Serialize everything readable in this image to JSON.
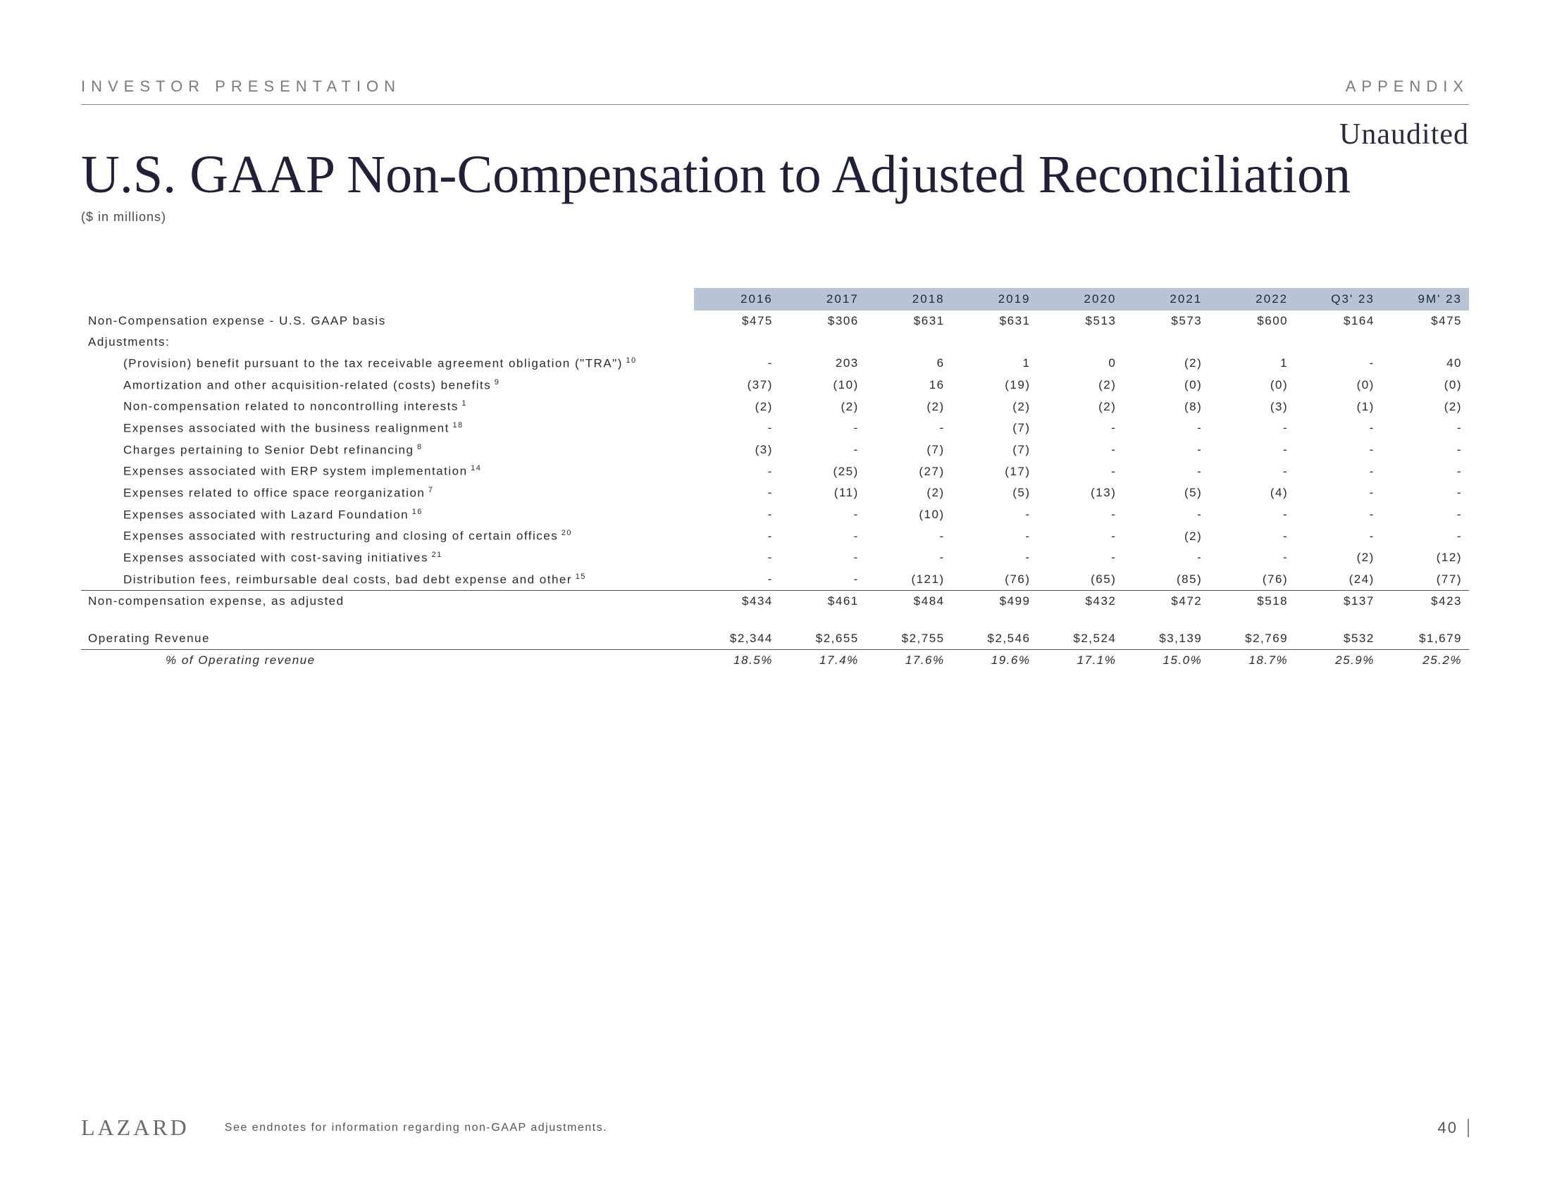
{
  "header": {
    "left": "INVESTOR PRESENTATION",
    "right": "APPENDIX"
  },
  "unaudited": "Unaudited",
  "title": "U.S. GAAP Non-Compensation to Adjusted Reconciliation",
  "subtitle": "($ in millions)",
  "columns": [
    "2016",
    "2017",
    "2018",
    "2019",
    "2020",
    "2021",
    "2022",
    "Q3' 23",
    "9M' 23"
  ],
  "rows": [
    {
      "label": "Non-Compensation expense  -  U.S. GAAP basis",
      "sup": "",
      "indent": 0,
      "vals": [
        "$475",
        "$306",
        "$631",
        "$631",
        "$513",
        "$573",
        "$600",
        "$164",
        "$475"
      ],
      "cls": ""
    },
    {
      "label": "Adjustments:",
      "sup": "",
      "indent": 0,
      "vals": [
        "",
        "",
        "",
        "",
        "",
        "",
        "",
        "",
        ""
      ],
      "cls": ""
    },
    {
      "label": "(Provision) benefit pursuant to the tax receivable agreement obligation (\"TRA\")",
      "sup": "10",
      "indent": 1,
      "vals": [
        "-",
        "203",
        "6",
        "1",
        "0",
        "(2)",
        "1",
        "-",
        "40"
      ],
      "cls": ""
    },
    {
      "label": "Amortization and other acquisition-related (costs) benefits",
      "sup": "9",
      "indent": 1,
      "vals": [
        "(37)",
        "(10)",
        "16",
        "(19)",
        "(2)",
        "(0)",
        "(0)",
        "(0)",
        "(0)"
      ],
      "cls": ""
    },
    {
      "label": "Non-compensation related to noncontrolling interests",
      "sup": "1",
      "indent": 1,
      "vals": [
        "(2)",
        "(2)",
        "(2)",
        "(2)",
        "(2)",
        "(8)",
        "(3)",
        "(1)",
        "(2)"
      ],
      "cls": ""
    },
    {
      "label": "Expenses associated with the business realignment",
      "sup": "18",
      "indent": 1,
      "vals": [
        "-",
        "-",
        "-",
        "(7)",
        "-",
        "-",
        "-",
        "-",
        "-"
      ],
      "cls": ""
    },
    {
      "label": "Charges pertaining to Senior Debt refinancing",
      "sup": "8",
      "indent": 1,
      "vals": [
        "(3)",
        "-",
        "(7)",
        "(7)",
        "-",
        "-",
        "-",
        "-",
        "-"
      ],
      "cls": ""
    },
    {
      "label": "Expenses associated with ERP system implementation",
      "sup": "14",
      "indent": 1,
      "vals": [
        "-",
        "(25)",
        "(27)",
        "(17)",
        "-",
        "-",
        "-",
        "-",
        "-"
      ],
      "cls": ""
    },
    {
      "label": "Expenses related to office space reorganization",
      "sup": "7",
      "indent": 1,
      "vals": [
        "-",
        "(11)",
        "(2)",
        "(5)",
        "(13)",
        "(5)",
        "(4)",
        "-",
        "-"
      ],
      "cls": ""
    },
    {
      "label": "Expenses associated with Lazard Foundation",
      "sup": "16",
      "indent": 1,
      "vals": [
        "-",
        "-",
        "(10)",
        "-",
        "-",
        "-",
        "-",
        "-",
        "-"
      ],
      "cls": ""
    },
    {
      "label": "Expenses associated with restructuring and closing of certain offices",
      "sup": "20",
      "indent": 1,
      "vals": [
        "-",
        "-",
        "-",
        "-",
        "-",
        "(2)",
        "-",
        "-",
        "-"
      ],
      "cls": ""
    },
    {
      "label": "Expenses associated with cost-saving initiatives",
      "sup": "21",
      "indent": 1,
      "vals": [
        "-",
        "-",
        "-",
        "-",
        "-",
        "-",
        "-",
        "(2)",
        "(12)"
      ],
      "cls": ""
    },
    {
      "label": "Distribution fees, reimbursable deal costs, bad debt expense and other",
      "sup": "15",
      "indent": 1,
      "vals": [
        "-",
        "-",
        "(121)",
        "(76)",
        "(65)",
        "(85)",
        "(76)",
        "(24)",
        "(77)"
      ],
      "cls": ""
    },
    {
      "label": "Non-compensation expense, as adjusted",
      "sup": "",
      "indent": 0,
      "vals": [
        "$434",
        "$461",
        "$484",
        "$499",
        "$432",
        "$472",
        "$518",
        "$137",
        "$423"
      ],
      "cls": "border-top"
    },
    {
      "label": "Operating Revenue",
      "sup": "",
      "indent": 0,
      "vals": [
        "$2,344",
        "$2,655",
        "$2,755",
        "$2,546",
        "$2,524",
        "$3,139",
        "$2,769",
        "$532",
        "$1,679"
      ],
      "cls": "gap-row"
    },
    {
      "label": "% of Operating revenue",
      "sup": "",
      "indent": 2,
      "vals": [
        "18.5%",
        "17.4%",
        "17.6%",
        "19.6%",
        "17.1%",
        "15.0%",
        "18.7%",
        "25.9%",
        "25.2%"
      ],
      "cls": "italic border-top"
    }
  ],
  "footer": {
    "logo": "LAZARD",
    "note": "See endnotes for information regarding non-GAAP adjustments.",
    "page": "40"
  },
  "style": {
    "header_bg": "#b7c4d4",
    "text_color": "#2a2a2a",
    "border_color": "#555555"
  }
}
